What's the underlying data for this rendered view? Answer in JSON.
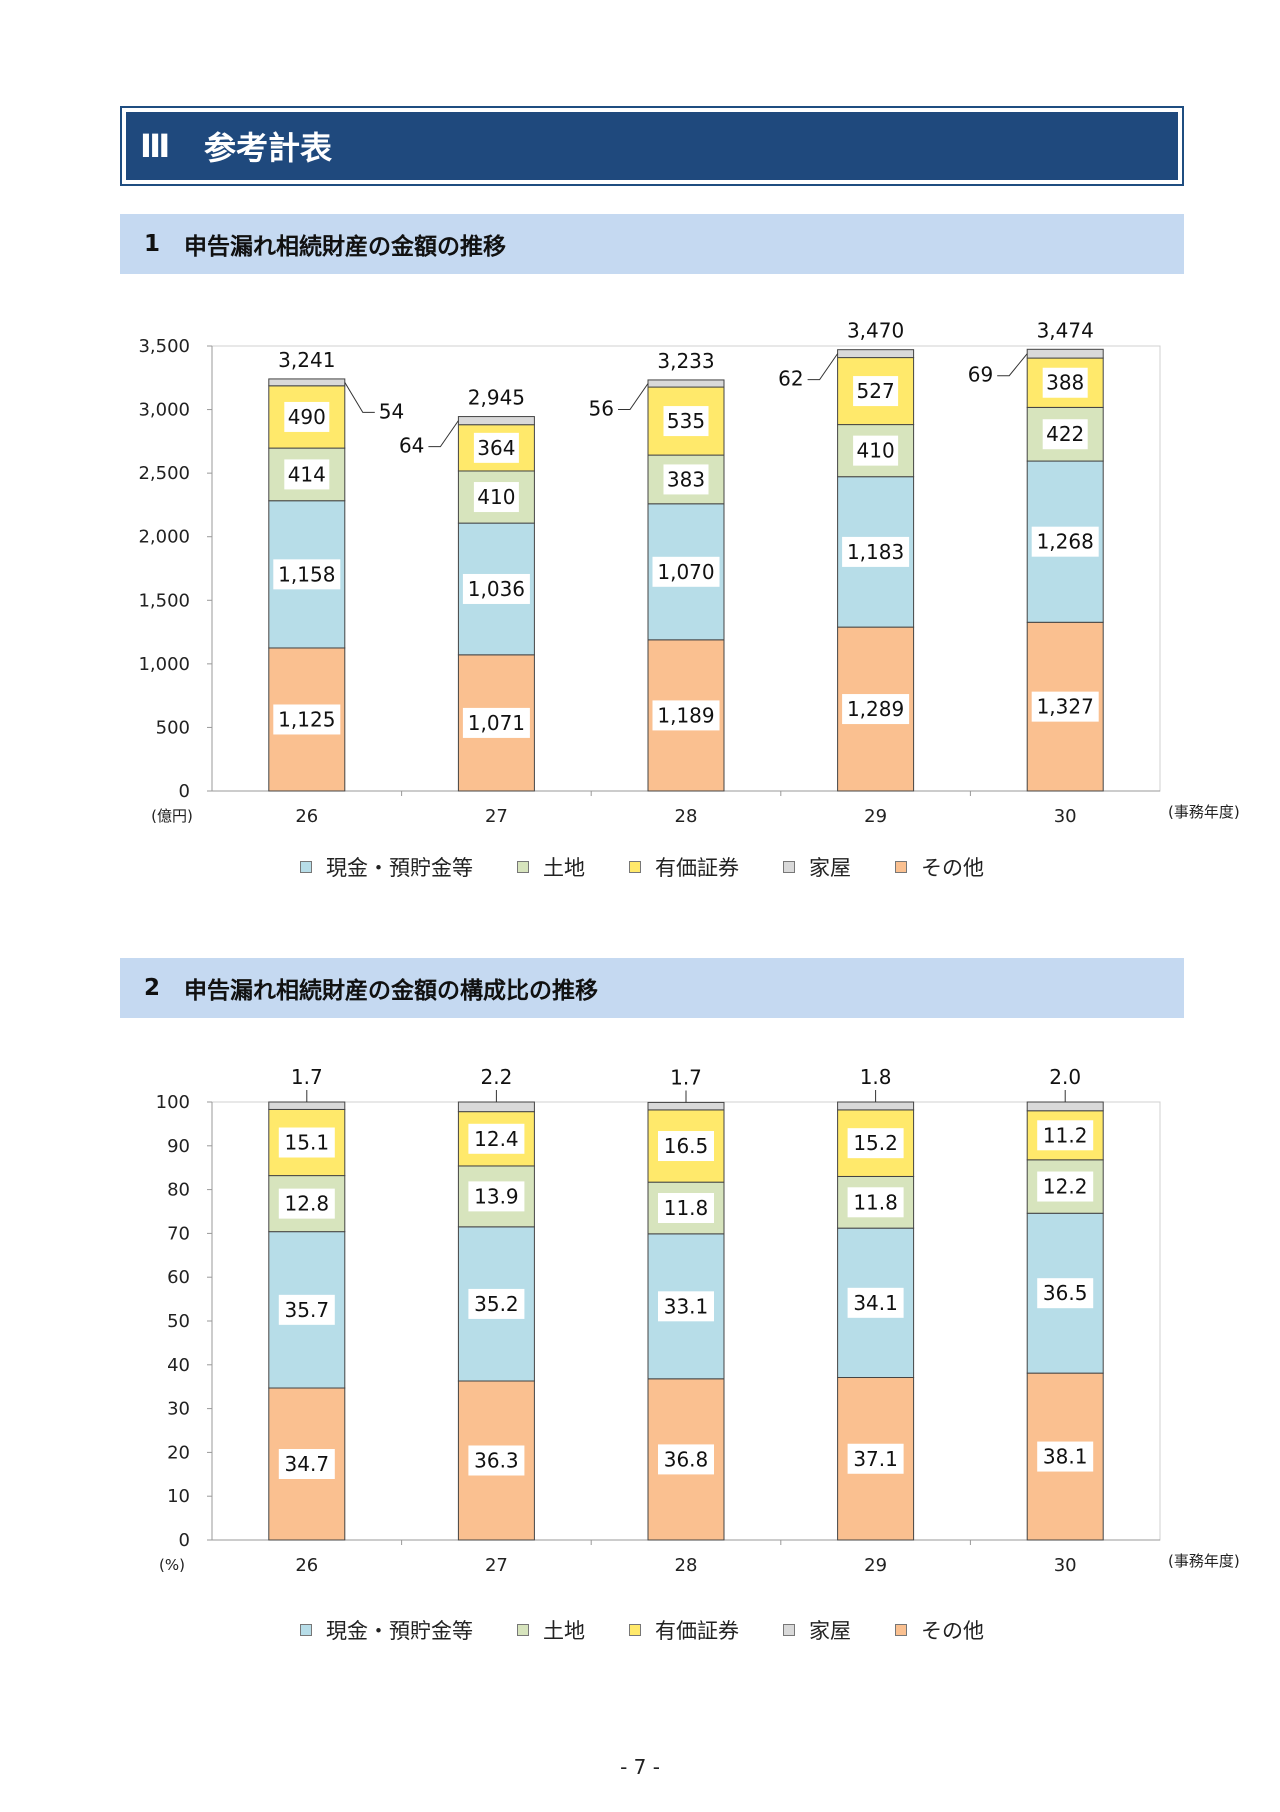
{
  "banner": {
    "num": "Ⅲ",
    "title": "参考計表"
  },
  "section1": {
    "num": "1",
    "title": "申告漏れ相続財産の金額の推移"
  },
  "section2": {
    "num": "2",
    "title": "申告漏れ相続財産の金額の構成比の推移"
  },
  "legend": [
    {
      "name": "現金・預貯金等",
      "color": "#b7dde8"
    },
    {
      "name": "土地",
      "color": "#d7e4bd"
    },
    {
      "name": "有価証券",
      "color": "#ffe96b"
    },
    {
      "name": "家屋",
      "color": "#d9d9d9"
    },
    {
      "name": "その他",
      "color": "#fac090"
    }
  ],
  "page_number": "- 7 -",
  "chart_data": [
    {
      "type": "bar",
      "stacked": true,
      "categories": [
        "26",
        "27",
        "28",
        "29",
        "30"
      ],
      "xlabel_unit": "(事務年度)",
      "ylabel_unit": "(億円)",
      "ylim": [
        0,
        3500
      ],
      "yticks": [
        "0",
        "500",
        "1,000",
        "1,500",
        "2,000",
        "2,500",
        "3,000",
        "3,500"
      ],
      "totals": [
        "3,241",
        "2,945",
        "3,233",
        "3,470",
        "3,474"
      ],
      "series": [
        {
          "name": "その他",
          "values": [
            1125,
            1071,
            1189,
            1289,
            1327
          ],
          "labels": [
            "1,125",
            "1,071",
            "1,189",
            "1,289",
            "1,327"
          ],
          "color": "#fac090"
        },
        {
          "name": "現金・預貯金等",
          "values": [
            1158,
            1036,
            1070,
            1183,
            1268
          ],
          "labels": [
            "1,158",
            "1,036",
            "1,070",
            "1,183",
            "1,268"
          ],
          "color": "#b7dde8"
        },
        {
          "name": "土地",
          "values": [
            414,
            410,
            383,
            410,
            422
          ],
          "labels": [
            "414",
            "410",
            "383",
            "410",
            "422"
          ],
          "color": "#d7e4bd"
        },
        {
          "name": "有価証券",
          "values": [
            490,
            364,
            535,
            527,
            388
          ],
          "labels": [
            "490",
            "364",
            "535",
            "527",
            "388"
          ],
          "color": "#ffe96b"
        },
        {
          "name": "家屋",
          "values": [
            54,
            64,
            56,
            62,
            69
          ],
          "labels": [
            "54",
            "64",
            "56",
            "62",
            "69"
          ],
          "color": "#d9d9d9"
        }
      ]
    },
    {
      "type": "bar",
      "stacked": true,
      "categories": [
        "26",
        "27",
        "28",
        "29",
        "30"
      ],
      "xlabel_unit": "(事務年度)",
      "ylabel_unit": "(%)",
      "ylim": [
        0,
        100
      ],
      "yticks": [
        "0",
        "10",
        "20",
        "30",
        "40",
        "50",
        "60",
        "70",
        "80",
        "90",
        "100"
      ],
      "series": [
        {
          "name": "その他",
          "values": [
            34.7,
            36.3,
            36.8,
            37.1,
            38.1
          ],
          "labels": [
            "34.7",
            "36.3",
            "36.8",
            "37.1",
            "38.1"
          ],
          "color": "#fac090"
        },
        {
          "name": "現金・預貯金等",
          "values": [
            35.7,
            35.2,
            33.1,
            34.1,
            36.5
          ],
          "labels": [
            "35.7",
            "35.2",
            "33.1",
            "34.1",
            "36.5"
          ],
          "color": "#b7dde8"
        },
        {
          "name": "土地",
          "values": [
            12.8,
            13.9,
            11.8,
            11.8,
            12.2
          ],
          "labels": [
            "12.8",
            "13.9",
            "11.8",
            "11.8",
            "12.2"
          ],
          "color": "#d7e4bd"
        },
        {
          "name": "有価証券",
          "values": [
            15.1,
            12.4,
            16.5,
            15.2,
            11.2
          ],
          "labels": [
            "15.1",
            "12.4",
            "16.5",
            "15.2",
            "11.2"
          ],
          "color": "#ffe96b"
        },
        {
          "name": "家屋",
          "values": [
            1.7,
            2.2,
            1.7,
            1.8,
            2.0
          ],
          "labels": [
            "1.7",
            "2.2",
            "1.7",
            "1.8",
            "2.0"
          ],
          "color": "#d9d9d9"
        }
      ]
    }
  ]
}
